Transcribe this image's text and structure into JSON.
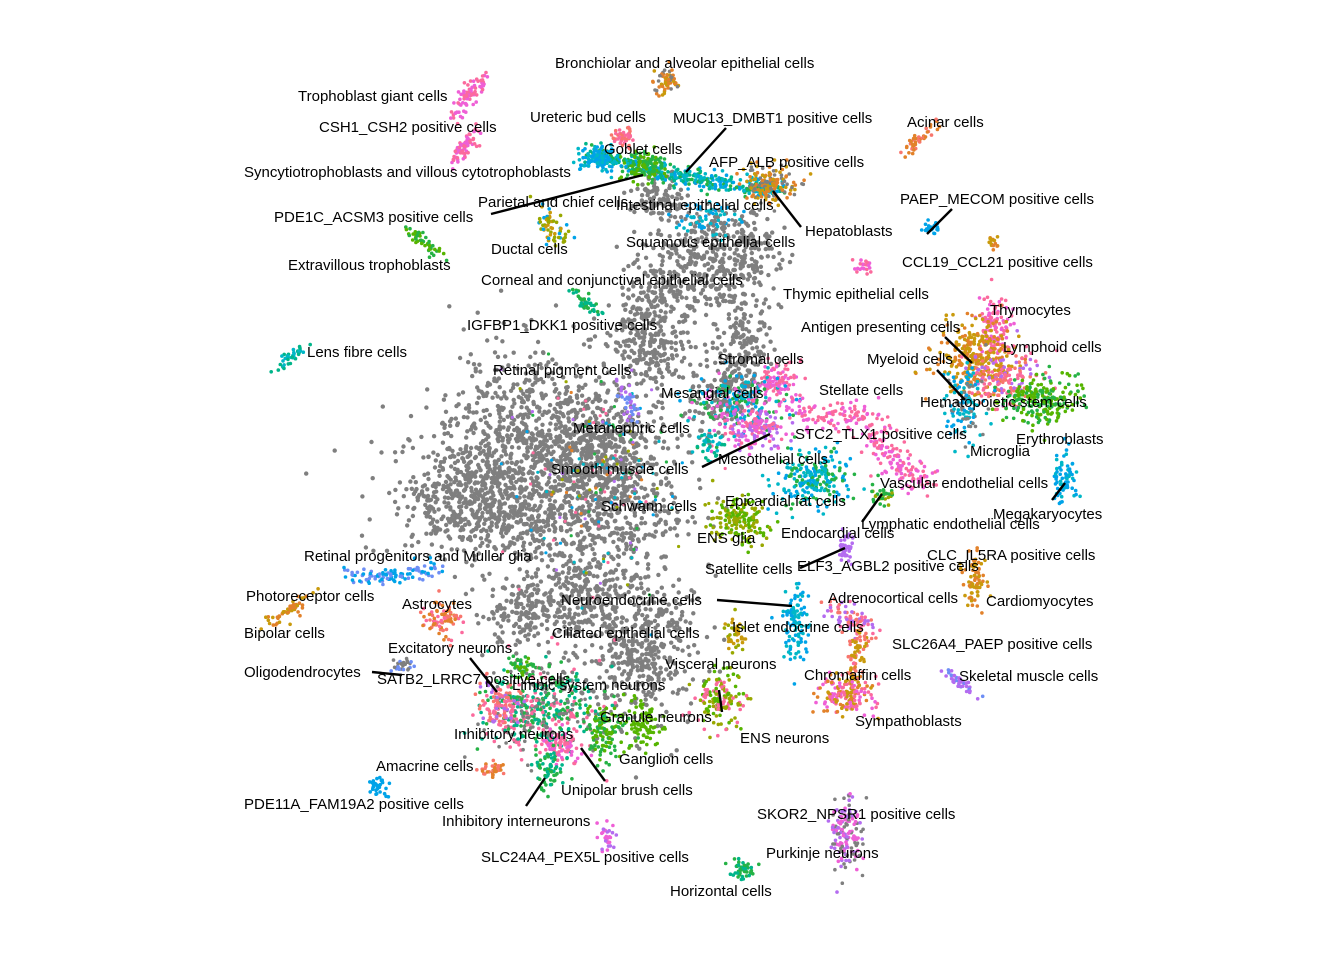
{
  "chart_data": {
    "type": "scatter",
    "title": "",
    "xlabel": "",
    "ylabel": "",
    "grid": false,
    "axes": false,
    "legend": "none",
    "palette": {
      "gray": "#7f7f7f",
      "orange": "#e2812a",
      "mustard": "#c99a0c",
      "olive": "#99a800",
      "lime": "#56b400",
      "green": "#25b245",
      "teal": "#00b58a",
      "cyan": "#00b7c7",
      "blue": "#00a3e8",
      "periwinkle": "#6d8ef5",
      "purple": "#b46cf0",
      "magenta": "#ef5fd6",
      "pink": "#fb6a9d",
      "salmon": "#f8766d"
    },
    "labels": [
      "Bronchiolar and alveolar epithelial cells",
      "Trophoblast giant cells",
      "Ureteric bud cells",
      "MUC13_DMBT1 positive cells",
      "Acinar cells",
      "CSH1_CSH2 positive cells",
      "Goblet cells",
      "AFP_ALB positive cells",
      "Syncytiotrophoblasts and villous cytotrophoblasts",
      "PAEP_MECOM positive cells",
      "Parietal and chief cells",
      "Intestinal epithelial cells",
      "PDE1C_ACSM3 positive cells",
      "Hepatoblasts",
      "Ductal cells",
      "Squamous epithelial cells",
      "CCL19_CCL21 positive cells",
      "Extravillous trophoblasts",
      "Corneal and conjunctival epithelial cells",
      "Thymic epithelial cells",
      "Thymocytes",
      "IGFBP1_DKK1 positive cells",
      "Antigen presenting cells",
      "Lymphoid cells",
      "Lens fibre cells",
      "Stromal cells",
      "Myeloid cells",
      "Retinal pigment cells",
      "Stellate cells",
      "Mesangial cells",
      "Hematopoietic stem cells",
      "Metanephric cells",
      "STC2_TLX1 positive cells",
      "Erythroblasts",
      "Microglia",
      "Mesothelial cells",
      "Smooth muscle cells",
      "Vascular endothelial cells",
      "Epicardial fat cells",
      "Schwann cells",
      "Megakaryocytes",
      "Lymphatic endothelial cells",
      "Endocardial cells",
      "ENS glia",
      "Retinal progenitors and Muller glia",
      "CLC_IL5RA positive cells",
      "Satellite cells",
      "ELF3_AGBL2 positive cells",
      "Photoreceptor cells",
      "Neuroendocrine cells",
      "Adrenocortical cells",
      "Cardiomyocytes",
      "Astrocytes",
      "Bipolar cells",
      "Ciliated epithelial cells",
      "Islet endocrine cells",
      "SLC26A4_PAEP positive cells",
      "Excitatory neurons",
      "Visceral neurons",
      "Oligodendrocytes",
      "Chromaffin cells",
      "Skeletal muscle cells",
      "SATB2_LRRC7 positive cells",
      "Limbic system neurons",
      "Granule neurons",
      "Sympathoblasts",
      "Inhibitory neurons",
      "ENS neurons",
      "Ganglion cells",
      "Amacrine cells",
      "Unipolar brush cells",
      "PDE11A_FAM19A2 positive cells",
      "SKOR2_NPSR1 positive cells",
      "Inhibitory interneurons",
      "Purkinje neurons",
      "SLC24A4_PEX5L positive cells",
      "Horizontal cells"
    ]
  }
}
